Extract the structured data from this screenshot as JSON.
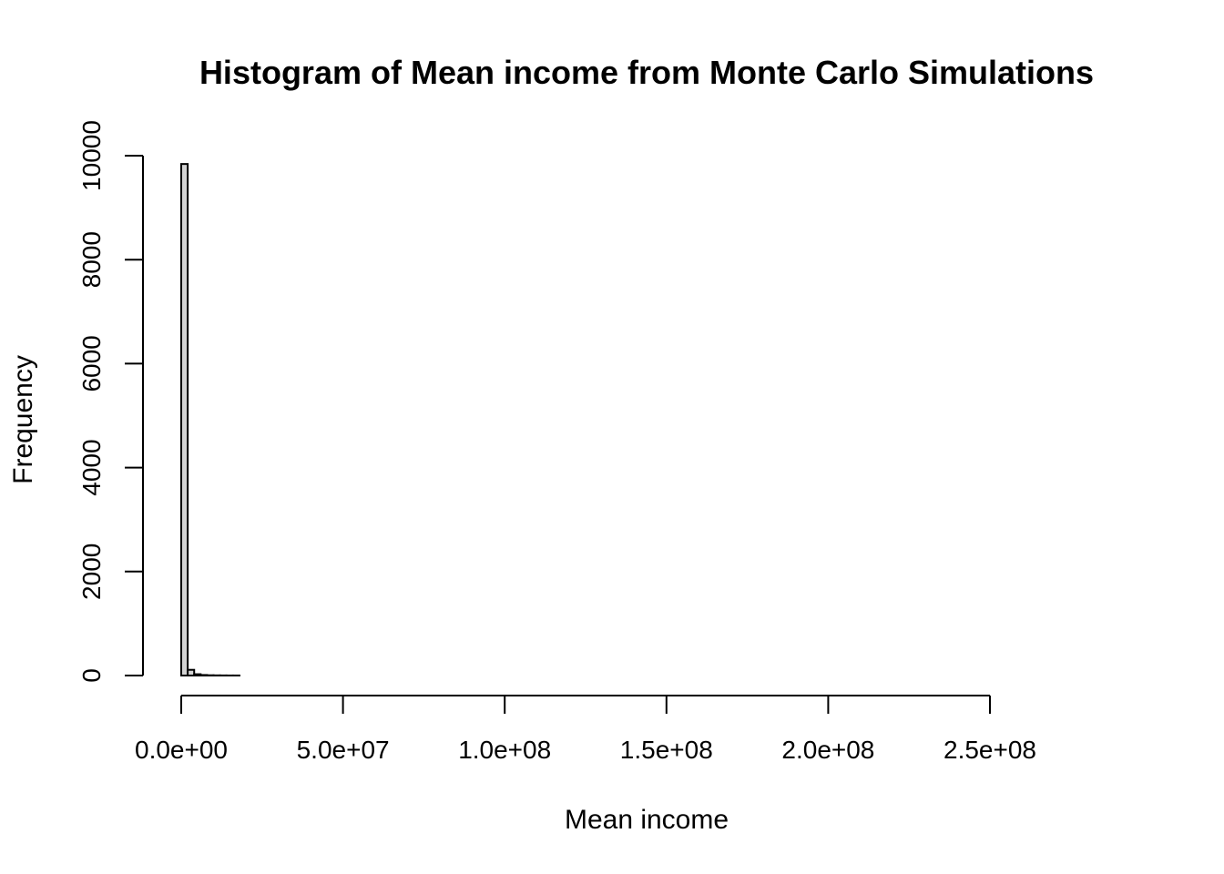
{
  "chart_data": {
    "type": "bar",
    "title": "Histogram of Mean income from Monte Carlo Simulations",
    "xlabel": "Mean income",
    "ylabel": "Frequency",
    "xlim": [
      0,
      288000000
    ],
    "ylim": [
      0,
      10000
    ],
    "x_ticks": [
      0,
      50000000,
      100000000,
      150000000,
      200000000,
      250000000
    ],
    "x_tick_labels": [
      "0.0e+00",
      "5.0e+07",
      "1.0e+08",
      "1.5e+08",
      "2.0e+08",
      "2.5e+08"
    ],
    "y_ticks": [
      0,
      2000,
      4000,
      6000,
      8000,
      10000
    ],
    "y_tick_labels": [
      "0",
      "2000",
      "4000",
      "6000",
      "8000",
      "10000"
    ],
    "bin_width": 2000000,
    "bins_start": 0,
    "bins_end": 288000000,
    "counts": [
      9840,
      110,
      25,
      10,
      5,
      3,
      2,
      1,
      1
    ]
  }
}
